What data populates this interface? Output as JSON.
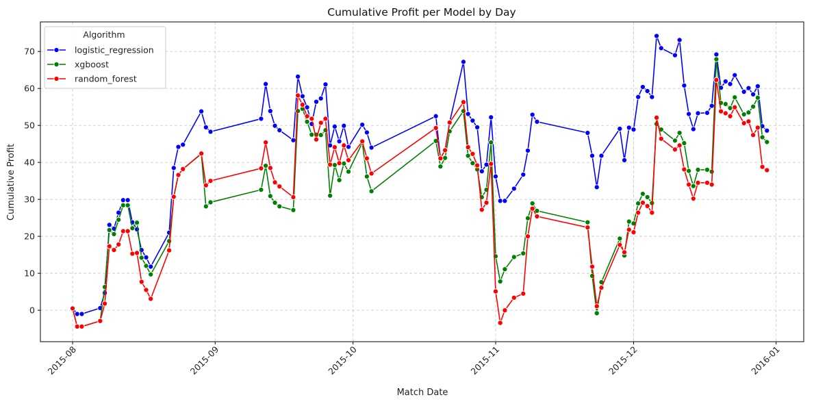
{
  "chart_data": {
    "type": "line",
    "title": "Cumulative Profit per Model by Day",
    "xlabel": "Match Date",
    "ylabel": "Cumulative Profit",
    "x_axis_type": "date",
    "xlim": [
      "2015-07-25",
      "2016-01-07"
    ],
    "ylim": [
      -8.5,
      78
    ],
    "x_ticks": [
      "2015-08-01",
      "2015-09-01",
      "2015-10-01",
      "2015-11-01",
      "2015-12-01",
      "2016-01-01"
    ],
    "x_tick_labels": [
      "2015-08",
      "2015-09",
      "2015-10",
      "2015-11",
      "2015-12",
      "2016-01"
    ],
    "y_ticks": [
      0,
      10,
      20,
      30,
      40,
      50,
      60,
      70
    ],
    "y_tick_labels": [
      "0",
      "10",
      "20",
      "30",
      "40",
      "50",
      "60",
      "70"
    ],
    "grid": true,
    "marker": "circle",
    "legend": {
      "title": "Algorithm",
      "position": "upper left"
    },
    "x": [
      "2015-08-01",
      "2015-08-02",
      "2015-08-03",
      "2015-08-07",
      "2015-08-08",
      "2015-08-09",
      "2015-08-10",
      "2015-08-11",
      "2015-08-12",
      "2015-08-13",
      "2015-08-14",
      "2015-08-15",
      "2015-08-16",
      "2015-08-17",
      "2015-08-18",
      "2015-08-22",
      "2015-08-23",
      "2015-08-24",
      "2015-08-25",
      "2015-08-29",
      "2015-08-30",
      "2015-08-31",
      "2015-09-11",
      "2015-09-12",
      "2015-09-13",
      "2015-09-14",
      "2015-09-15",
      "2015-09-18",
      "2015-09-19",
      "2015-09-20",
      "2015-09-21",
      "2015-09-22",
      "2015-09-23",
      "2015-09-24",
      "2015-09-25",
      "2015-09-26",
      "2015-09-27",
      "2015-09-28",
      "2015-09-29",
      "2015-09-30",
      "2015-10-03",
      "2015-10-04",
      "2015-10-05",
      "2015-10-19",
      "2015-10-20",
      "2015-10-21",
      "2015-10-22",
      "2015-10-25",
      "2015-10-26",
      "2015-10-27",
      "2015-10-28",
      "2015-10-29",
      "2015-10-30",
      "2015-10-31",
      "2015-11-01",
      "2015-11-02",
      "2015-11-03",
      "2015-11-05",
      "2015-11-07",
      "2015-11-08",
      "2015-11-09",
      "2015-11-10",
      "2015-11-21",
      "2015-11-22",
      "2015-11-23",
      "2015-11-24",
      "2015-11-28",
      "2015-11-29",
      "2015-11-30",
      "2015-12-01",
      "2015-12-02",
      "2015-12-03",
      "2015-12-04",
      "2015-12-05",
      "2015-12-06",
      "2015-12-07",
      "2015-12-10",
      "2015-12-11",
      "2015-12-12",
      "2015-12-13",
      "2015-12-14",
      "2015-12-15",
      "2015-12-17",
      "2015-12-18",
      "2015-12-19",
      "2015-12-20",
      "2015-12-21",
      "2015-12-22",
      "2015-12-23",
      "2015-12-25",
      "2015-12-26",
      "2015-12-27",
      "2015-12-28",
      "2015-12-29",
      "2015-12-30"
    ],
    "series": [
      {
        "name": "logistic_regression",
        "color": "#0000ff",
        "values": [
          0.5,
          -1.0,
          -1.0,
          0.6,
          4.7,
          23.1,
          22.1,
          26.4,
          29.8,
          29.8,
          23.8,
          21.9,
          16.3,
          14.3,
          11.8,
          21.0,
          38.5,
          44.2,
          44.8,
          53.8,
          49.5,
          48.3,
          51.8,
          61.2,
          53.9,
          49.9,
          48.7,
          46.0,
          63.2,
          57.9,
          54.9,
          50.4,
          56.4,
          57.3,
          61.1,
          44.6,
          49.7,
          45.7,
          49.9,
          44.2,
          50.2,
          48.1,
          44.0,
          52.5,
          41.1,
          43.3,
          50.9,
          67.2,
          53.1,
          51.3,
          49.5,
          37.6,
          39.4,
          52.2,
          36.2,
          29.6,
          29.6,
          32.9,
          36.7,
          43.2,
          52.9,
          51.0,
          48.0,
          41.8,
          33.3,
          41.8,
          49.1,
          40.6,
          49.4,
          48.9,
          57.7,
          60.4,
          59.3,
          57.7,
          74.2,
          70.9,
          69.0,
          73.1,
          60.8,
          53.1,
          49.0,
          53.3,
          53.4,
          55.3,
          69.2,
          60.2,
          61.9,
          61.2,
          63.6,
          59.1,
          60.1,
          58.4,
          60.6,
          49.8,
          48.6
        ]
      },
      {
        "name": "xgboost",
        "color": "#008000",
        "values": [
          0.5,
          -4.4,
          -4.4,
          -2.9,
          6.3,
          21.7,
          20.6,
          24.5,
          28.4,
          28.4,
          22.2,
          23.7,
          14.2,
          12.0,
          9.7,
          18.7,
          30.6,
          36.6,
          38.2,
          42.3,
          28.1,
          29.2,
          32.6,
          39.1,
          30.9,
          29.1,
          28.1,
          27.1,
          53.9,
          54.5,
          51.0,
          47.5,
          47.5,
          47.4,
          48.7,
          31.0,
          39.3,
          35.2,
          39.7,
          37.5,
          45.3,
          36.2,
          32.2,
          45.8,
          38.9,
          41.2,
          48.4,
          53.9,
          41.8,
          39.8,
          38.1,
          30.6,
          32.6,
          45.4,
          14.6,
          7.8,
          11.1,
          14.4,
          15.4,
          24.9,
          28.9,
          26.9,
          23.8,
          9.3,
          -0.8,
          7.6,
          19.4,
          14.8,
          24.0,
          23.5,
          28.9,
          31.5,
          30.6,
          29.0,
          50.4,
          48.9,
          45.9,
          48.0,
          45.2,
          37.7,
          33.6,
          38.0,
          38.0,
          37.5,
          67.9,
          56.1,
          55.8,
          54.7,
          57.6,
          53.0,
          53.5,
          55.1,
          57.5,
          46.8,
          45.5
        ]
      },
      {
        "name": "random_forest",
        "color": "#ff0000",
        "values": [
          0.5,
          -4.4,
          -4.4,
          -2.9,
          1.8,
          17.3,
          16.3,
          17.8,
          21.4,
          21.4,
          15.3,
          15.5,
          7.7,
          5.5,
          3.1,
          16.2,
          30.7,
          36.6,
          38.2,
          42.4,
          33.8,
          35.0,
          38.4,
          45.4,
          38.5,
          34.6,
          33.5,
          30.6,
          58.1,
          55.6,
          52.5,
          51.8,
          46.2,
          50.7,
          51.8,
          39.4,
          44.1,
          39.8,
          44.6,
          40.6,
          45.7,
          41.1,
          37.0,
          49.3,
          41.1,
          43.3,
          50.8,
          56.3,
          44.1,
          42.3,
          39.2,
          27.2,
          29.1,
          39.6,
          5.1,
          -3.4,
          0.0,
          3.4,
          4.5,
          20.0,
          27.5,
          25.4,
          22.4,
          11.8,
          1.1,
          6.1,
          17.7,
          15.7,
          21.8,
          21.1,
          26.4,
          29.1,
          28.2,
          26.4,
          52.1,
          46.4,
          43.5,
          44.6,
          38.1,
          34.0,
          30.2,
          34.5,
          34.5,
          34.0,
          62.3,
          53.8,
          53.3,
          52.5,
          54.9,
          50.6,
          51.1,
          47.4,
          49.4,
          38.8,
          37.9
        ]
      }
    ]
  }
}
